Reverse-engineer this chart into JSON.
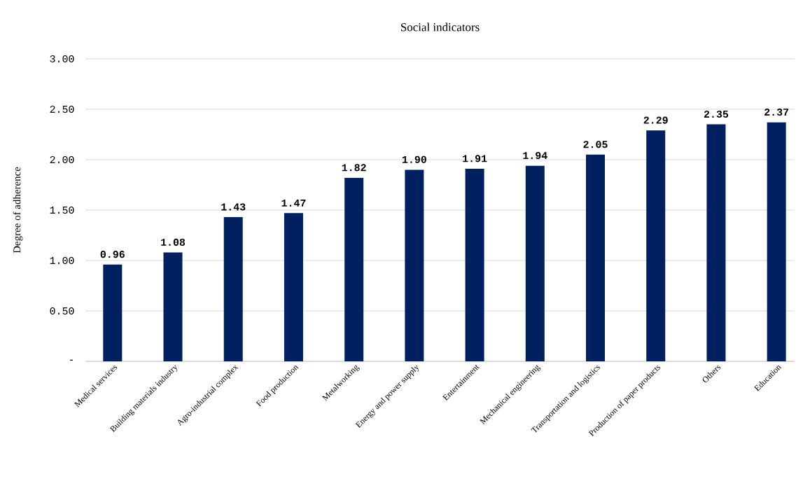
{
  "chart_data": {
    "type": "bar",
    "title": "Social indicators",
    "ylabel": "Degree of adherence",
    "categories": [
      "Medical services",
      "Building materials industry",
      "Agro-industrial complex",
      "Food production",
      "Metalworking",
      "Energy and power supply",
      "Entertainment",
      "Mechanical engineering",
      "Transportation and logistics",
      "Production of paper products",
      "Others",
      "Education"
    ],
    "values": [
      0.96,
      1.08,
      1.43,
      1.47,
      1.82,
      1.9,
      1.91,
      1.94,
      2.05,
      2.29,
      2.35,
      2.37
    ],
    "value_labels": [
      "0.96",
      "1.08",
      "1.43",
      "1.47",
      "1.82",
      "1.90",
      "1.91",
      "1.94",
      "2.05",
      "2.29",
      "2.35",
      "2.37"
    ],
    "color": "#002060",
    "ylim": [
      0,
      3
    ],
    "yticks": [
      {
        "value": 0,
        "label": "-"
      },
      {
        "value": 0.5,
        "label": "0.50"
      },
      {
        "value": 1,
        "label": "1.00"
      },
      {
        "value": 1.5,
        "label": "1.50"
      },
      {
        "value": 2,
        "label": "2.00"
      },
      {
        "value": 2.5,
        "label": "2.50"
      },
      {
        "value": 3,
        "label": "3.00"
      }
    ],
    "grid": "y"
  }
}
